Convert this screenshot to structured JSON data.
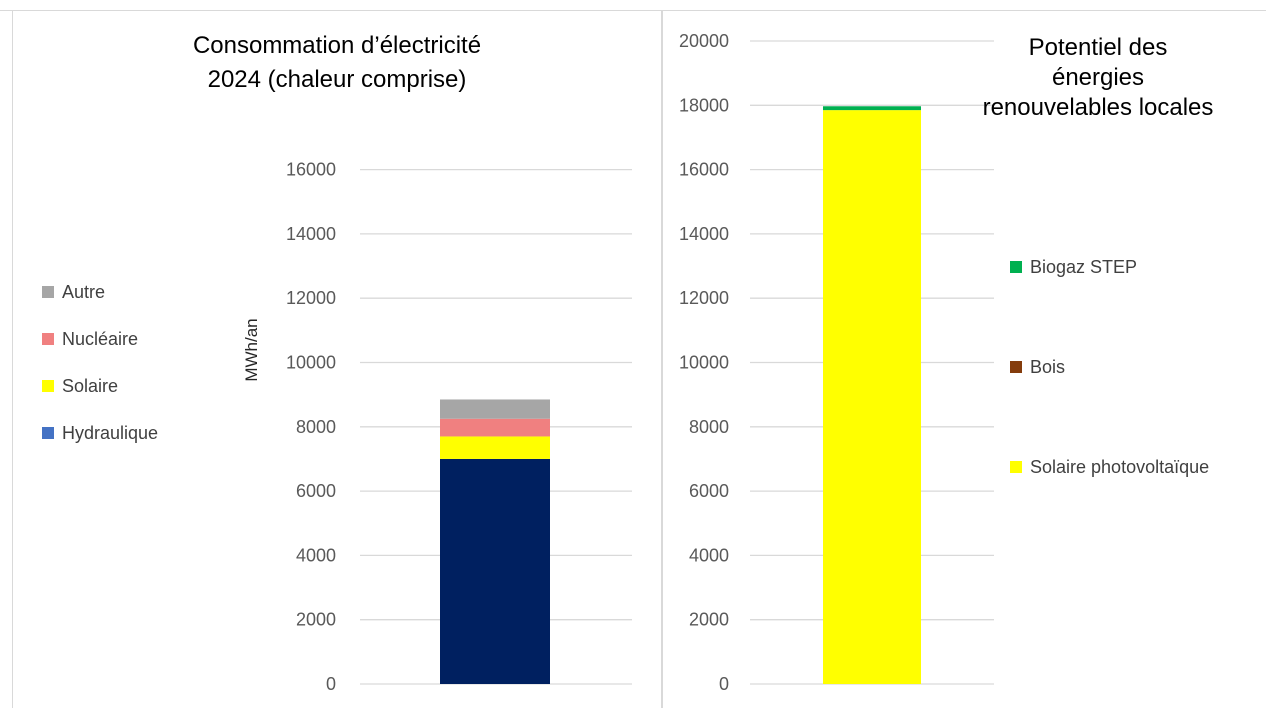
{
  "chart_data": [
    {
      "type": "bar",
      "stacked": true,
      "title": [
        "Consommation d’électricité",
        "2024 (chaleur comprise)"
      ],
      "ylabel": "MWh/an",
      "ylim": [
        0,
        20000
      ],
      "yticks": [
        0,
        2000,
        4000,
        6000,
        8000,
        10000,
        12000,
        14000,
        16000
      ],
      "grid": true,
      "legend_position": "left",
      "legend_order": [
        "Autre",
        "Nucléaire",
        "Solaire",
        "Hydraulique"
      ],
      "series": [
        {
          "name": "Hydraulique",
          "value": 7000,
          "color": "#002060",
          "legend_color": "#4472c4"
        },
        {
          "name": "Solaire",
          "value": 700,
          "color": "#ffff00"
        },
        {
          "name": "Nucléaire",
          "value": 550,
          "color": "#f08080"
        },
        {
          "name": "Autre",
          "value": 600,
          "color": "#a6a6a6"
        }
      ]
    },
    {
      "type": "bar",
      "stacked": true,
      "title": [
        "Potentiel des",
        "énergies",
        "renouvelables locales"
      ],
      "ylabel": "",
      "ylim": [
        0,
        20000
      ],
      "yticks": [
        0,
        2000,
        4000,
        6000,
        8000,
        10000,
        12000,
        14000,
        16000,
        18000,
        20000
      ],
      "grid": true,
      "legend_position": "right",
      "legend_order": [
        "Biogaz STEP",
        "Bois",
        "Solaire photovoltaïque"
      ],
      "series": [
        {
          "name": "Solaire photovoltaïque",
          "value": 17850,
          "color": "#ffff00"
        },
        {
          "name": "Bois",
          "value": 0,
          "color": "#843c0c"
        },
        {
          "name": "Biogaz STEP",
          "value": 120,
          "color": "#00b050"
        }
      ]
    }
  ]
}
